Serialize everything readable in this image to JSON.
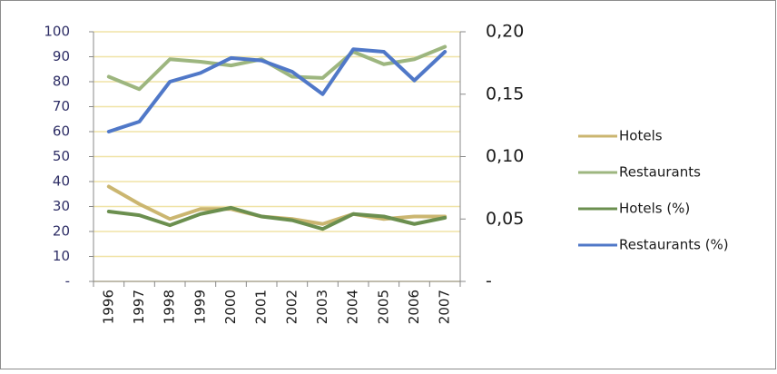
{
  "chart_data": {
    "type": "line",
    "categories": [
      "1996",
      "1997",
      "1998",
      "1999",
      "2000",
      "2001",
      "2002",
      "2003",
      "2004",
      "2005",
      "2006",
      "2007"
    ],
    "series": [
      {
        "name": "Hotels",
        "color": "#cbb670",
        "values": [
          38,
          31,
          25,
          29,
          29,
          26,
          25,
          23,
          27,
          25,
          26,
          26
        ]
      },
      {
        "name": "Restaurants",
        "color": "#9db67f",
        "values": [
          82,
          77,
          89,
          88,
          86.5,
          89,
          82,
          81.5,
          92,
          87,
          89,
          94
        ]
      },
      {
        "name": "Hotels (%)",
        "color": "#6b8f4f",
        "axis": "y2",
        "values": [
          0.056,
          0.053,
          0.045,
          0.054,
          0.059,
          0.052,
          0.049,
          0.042,
          0.054,
          0.052,
          0.046,
          0.051
        ]
      },
      {
        "name": "Restaurants (%)",
        "color": "#5078c8",
        "axis": "y2",
        "values": [
          0.12,
          0.128,
          0.16,
          0.167,
          0.179,
          0.177,
          0.168,
          0.15,
          0.186,
          0.184,
          0.161,
          0.184
        ]
      }
    ],
    "ylim": [
      0,
      100
    ],
    "yticks": [
      {
        "value": 0,
        "label": "-"
      },
      10,
      20,
      30,
      40,
      50,
      60,
      70,
      80,
      90,
      100
    ],
    "y2lim": [
      0,
      0.2
    ],
    "y2ticks": [
      {
        "value": 0,
        "label": "-"
      },
      {
        "value": 0.05,
        "label": "0,05"
      },
      {
        "value": 0.1,
        "label": "0,10"
      },
      {
        "value": 0.15,
        "label": "0,15"
      },
      {
        "value": 0.2,
        "label": "0,20"
      }
    ],
    "grid": true,
    "grid_color": "#f0e3a6",
    "legend": "right"
  }
}
